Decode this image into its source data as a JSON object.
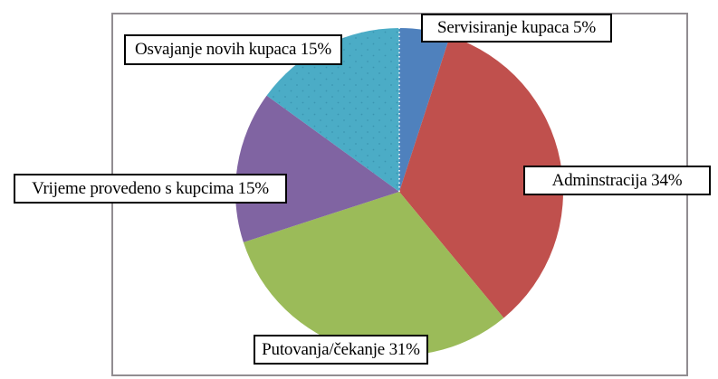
{
  "chart_data": {
    "type": "pie",
    "title": "",
    "legend": "none",
    "start_angle_deg": 0,
    "direction": "clockwise",
    "data_labels": "category name + percent, shown in white boxes with black borders",
    "slices": [
      {
        "label": "Servisiranje kupaca",
        "value": 5,
        "color": "#4F81BD",
        "label_text": "Servisiranje kupaca 5%"
      },
      {
        "label": "Adminstracija",
        "value": 34,
        "color": "#C0504D",
        "label_text": "Adminstracija 34%"
      },
      {
        "label": "Putovanja/čekanje",
        "value": 31,
        "color": "#9BBB59",
        "label_text": "Putovanja/čekanje 31%"
      },
      {
        "label": "Vrijeme provedeno s kupcima",
        "value": 15,
        "color": "#8064A2",
        "label_text": "Vrijeme provedeno s kupcima 15%"
      },
      {
        "label": "Osvajanje novih kupaca",
        "value": 15,
        "color": "#4BACC6",
        "label_text": "Osvajanje novih kupaca 15%",
        "pattern": "dots"
      }
    ],
    "start_radius_line": {
      "visible": true,
      "style": "white dotted line at 12 o'clock",
      "color": "#FFFFFF"
    },
    "frame_border_color": "#918D91",
    "dot_pattern_color": "#2E81A0"
  }
}
